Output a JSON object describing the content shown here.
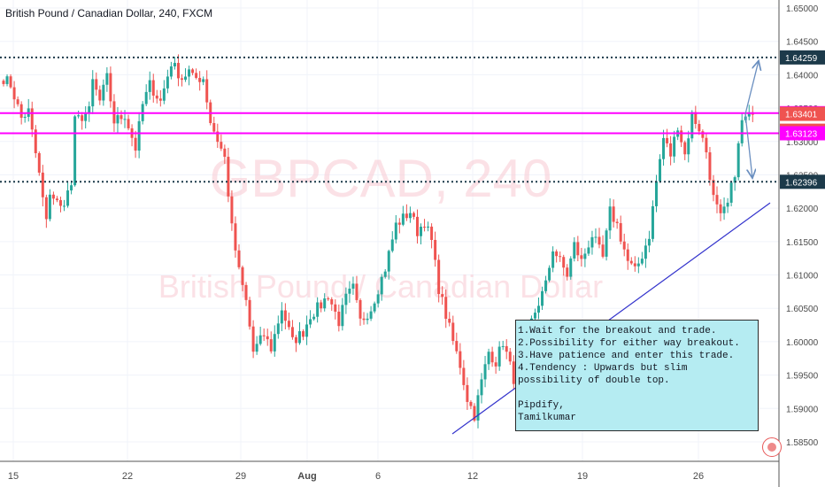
{
  "title": "British Pound / Canadian Dollar, 240, FXCM",
  "watermark": {
    "symbol": "GBPCAD, 240",
    "name": "British Pound / Canadian Dollar"
  },
  "colors": {
    "up": "#26a69a",
    "down": "#ef5350",
    "resistance": "#ff00ff",
    "support": "#1c3a4a",
    "trendline": "#3333cc",
    "arrow": "#6a8fc0",
    "note_bg": "#b5ecf2"
  },
  "price_axis": {
    "ticks": [
      "1.65000",
      "1.64500",
      "1.64000",
      "1.63500",
      "1.63000",
      "1.62500",
      "1.62000",
      "1.61500",
      "1.61000",
      "1.60500",
      "1.60000",
      "1.59500",
      "1.59000",
      "1.58500"
    ],
    "range": [
      1.5835,
      1.6522
    ]
  },
  "time_axis": {
    "ticks": [
      "15",
      "22",
      "29",
      "Aug",
      "6",
      "12",
      "19",
      "26"
    ]
  },
  "price_labels": [
    {
      "text": "1.64259",
      "value": 1.64259,
      "style": "dark"
    },
    {
      "text": "1.63424",
      "value": 1.63424,
      "style": "magenta"
    },
    {
      "text": "1.63401",
      "value": 1.63401,
      "style": "red"
    },
    {
      "text": "03:38:56",
      "value": 1.6325,
      "style": "countdown"
    },
    {
      "text": "1.63123",
      "value": 1.63123,
      "style": "magenta"
    },
    {
      "text": "1.62396",
      "value": 1.62396,
      "style": "dark"
    }
  ],
  "annotation": {
    "lines": [
      "1.Wait for the breakout and trade.",
      "2.Possibility for either way breakout.",
      "3.Have patience and enter this trade.",
      "4.Tendency : Upwards but slim",
      "possibility of double top."
    ],
    "signature": [
      "Pipdify,",
      "Tamilkumar"
    ]
  },
  "chart_data": {
    "type": "candlestick",
    "title": "British Pound / Canadian Dollar, 240, FXCM",
    "ylim": [
      1.5835,
      1.6522
    ],
    "horizontal_levels": [
      {
        "value": 1.64259,
        "style": "dotted",
        "color": "dark"
      },
      {
        "value": 1.63424,
        "style": "solid",
        "color": "magenta"
      },
      {
        "value": 1.63123,
        "style": "solid",
        "color": "magenta"
      },
      {
        "value": 1.62396,
        "style": "dotted",
        "color": "dark"
      }
    ],
    "trendline": {
      "from_price": 1.5862,
      "to_price": 1.6208
    },
    "anchors": [
      [
        0,
        1.6395
      ],
      [
        2,
        1.6385
      ],
      [
        5,
        1.6335
      ],
      [
        7,
        1.6345
      ],
      [
        10,
        1.625
      ],
      [
        12,
        1.6178
      ],
      [
        13,
        1.6225
      ],
      [
        16,
        1.62
      ],
      [
        19,
        1.6235
      ],
      [
        20,
        1.633
      ],
      [
        24,
        1.6345
      ],
      [
        25,
        1.639
      ],
      [
        27,
        1.636
      ],
      [
        29,
        1.6395
      ],
      [
        31,
        1.633
      ],
      [
        34,
        1.634
      ],
      [
        37,
        1.629
      ],
      [
        39,
        1.6355
      ],
      [
        41,
        1.6385
      ],
      [
        44,
        1.636
      ],
      [
        47,
        1.6418
      ],
      [
        50,
        1.6395
      ],
      [
        52,
        1.6405
      ],
      [
        53,
        1.6395
      ],
      [
        56,
        1.6395
      ],
      [
        58,
        1.633
      ],
      [
        62,
        1.6275
      ],
      [
        64,
        1.617
      ],
      [
        66,
        1.6105
      ],
      [
        68,
        1.606
      ],
      [
        70,
        1.5985
      ],
      [
        73,
        1.601
      ],
      [
        75,
        1.599
      ],
      [
        78,
        1.605
      ],
      [
        81,
        1.6
      ],
      [
        84,
        1.6015
      ],
      [
        86,
        1.604
      ],
      [
        89,
        1.6055
      ],
      [
        91,
        1.607
      ],
      [
        94,
        1.603
      ],
      [
        96,
        1.6065
      ],
      [
        98,
        1.608
      ],
      [
        100,
        1.603
      ],
      [
        103,
        1.605
      ],
      [
        107,
        1.611
      ],
      [
        110,
        1.6175
      ],
      [
        114,
        1.6195
      ],
      [
        116,
        1.6165
      ],
      [
        118,
        1.618
      ],
      [
        120,
        1.615
      ],
      [
        122,
        1.608
      ],
      [
        124,
        1.604
      ],
      [
        126,
        1.6
      ],
      [
        128,
        1.5965
      ],
      [
        130,
        1.5915
      ],
      [
        132,
        1.589
      ],
      [
        134,
        1.594
      ],
      [
        136,
        1.5985
      ],
      [
        138,
        1.597
      ],
      [
        140,
        1.6
      ],
      [
        143,
        1.5945
      ],
      [
        145,
        1.5975
      ],
      [
        147,
        1.6015
      ],
      [
        149,
        1.6045
      ],
      [
        152,
        1.6085
      ],
      [
        154,
        1.614
      ],
      [
        156,
        1.612
      ],
      [
        158,
        1.61
      ],
      [
        160,
        1.6145
      ],
      [
        162,
        1.612
      ],
      [
        165,
        1.616
      ],
      [
        168,
        1.6125
      ],
      [
        170,
        1.6195
      ],
      [
        172,
        1.6175
      ],
      [
        175,
        1.612
      ],
      [
        177,
        1.6105
      ],
      [
        179,
        1.613
      ],
      [
        181,
        1.616
      ],
      [
        183,
        1.624
      ],
      [
        185,
        1.6305
      ],
      [
        187,
        1.628
      ],
      [
        189,
        1.6325
      ],
      [
        191,
        1.628
      ],
      [
        193,
        1.634
      ],
      [
        195,
        1.632
      ],
      [
        197,
        1.6285
      ],
      [
        199,
        1.6215
      ],
      [
        201,
        1.6185
      ],
      [
        203,
        1.6205
      ],
      [
        205,
        1.6255
      ],
      [
        207,
        1.633
      ],
      [
        210,
        1.634
      ]
    ]
  }
}
